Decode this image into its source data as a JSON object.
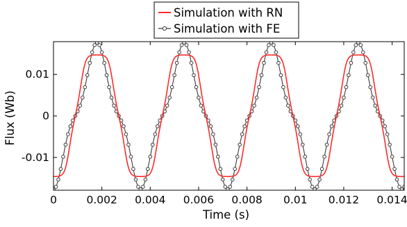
{
  "chart_data": {
    "type": "line",
    "title": "",
    "xlabel": "Time (s)",
    "ylabel": "Flux (Wb)",
    "xlim": [
      0,
      0.0145
    ],
    "ylim": [
      -0.0179,
      0.0179
    ],
    "x_ticks": [
      0,
      0.002,
      0.004,
      0.006,
      0.008,
      0.01,
      0.012,
      0.014
    ],
    "x_tick_labels": [
      "0",
      "0.002",
      "0.004",
      "0.006",
      "0.008",
      "0.01",
      "0.012",
      "0.014"
    ],
    "y_ticks": [
      0.01,
      0,
      -0.01
    ],
    "y_tick_labels": [
      "0.01",
      "0",
      "-0.01"
    ],
    "grid": false,
    "legend_position": "top-center",
    "waveform": {
      "period": 0.0036,
      "first_peak_time": 0.0018,
      "sample_step": 0.0001
    },
    "series": [
      {
        "name": "Simulation with RN",
        "color": "#ff2a2a",
        "marker": "none",
        "peak": 0.0147,
        "trough": -0.0146,
        "description": "saturated (flattened) waveform"
      },
      {
        "name": "Simulation with FE",
        "color": "#3a3a3a",
        "marker": "circle",
        "peak": 0.0177,
        "trough": -0.0177,
        "description": "full waveform with open circle markers"
      }
    ]
  }
}
